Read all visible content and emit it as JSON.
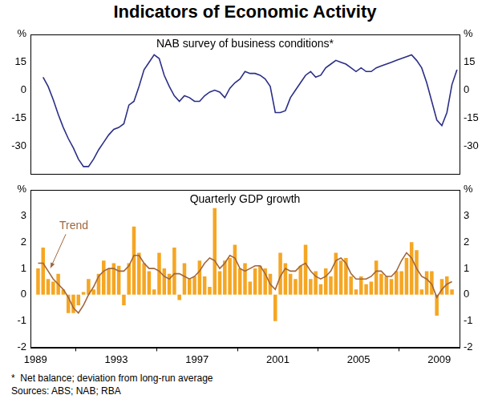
{
  "title": "Indicators of Economic Activity",
  "notes": [
    "*  Net balance; deviation from long-run average",
    "Sources: ABS; NAB; RBA"
  ],
  "chart_data": [
    {
      "type": "line",
      "title": "NAB survey of business conditions*",
      "x": [
        1989.375,
        1989.625,
        1989.875,
        1990.125,
        1990.375,
        1990.625,
        1990.875,
        1991.125,
        1991.375,
        1991.625,
        1991.875,
        1992.125,
        1992.375,
        1992.625,
        1992.875,
        1993.125,
        1993.375,
        1993.625,
        1993.875,
        1994.125,
        1994.375,
        1994.625,
        1994.875,
        1995.125,
        1995.375,
        1995.625,
        1995.875,
        1996.125,
        1996.375,
        1996.625,
        1996.875,
        1997.125,
        1997.375,
        1997.625,
        1997.875,
        1998.125,
        1998.375,
        1998.625,
        1998.875,
        1999.125,
        1999.375,
        1999.625,
        1999.875,
        2000.125,
        2000.375,
        2000.625,
        2000.875,
        2001.125,
        2001.375,
        2001.625,
        2001.875,
        2002.125,
        2002.375,
        2002.625,
        2002.875,
        2003.125,
        2003.375,
        2003.625,
        2003.875,
        2004.125,
        2004.375,
        2004.625,
        2004.875,
        2005.125,
        2005.375,
        2005.625,
        2005.875,
        2006.125,
        2006.375,
        2006.625,
        2006.875,
        2007.125,
        2007.375,
        2007.625,
        2007.875,
        2008.125,
        2008.375,
        2008.625,
        2008.875,
        2009.125,
        2009.375,
        2009.625,
        2009.875
      ],
      "values": [
        7,
        2,
        -5,
        -13,
        -20,
        -26,
        -31,
        -37,
        -41,
        -41,
        -37,
        -32,
        -28,
        -24,
        -21,
        -20,
        -18,
        -8,
        -6,
        2,
        11,
        15,
        19,
        17,
        8,
        2,
        -3,
        -6,
        -3,
        -4,
        -6,
        -6,
        -3,
        -1,
        0,
        -1,
        -4,
        1,
        4,
        6,
        10,
        9,
        9,
        8,
        6,
        2,
        -12,
        -12,
        -11,
        -4,
        0,
        4,
        8,
        10,
        7,
        8,
        12,
        14,
        16,
        15,
        14,
        12,
        10,
        12,
        10,
        10,
        12,
        13,
        14,
        15,
        16,
        17,
        18,
        19,
        16,
        12,
        4,
        -6,
        -16,
        -19,
        -12,
        3,
        11
      ],
      "color": "#2b2f86",
      "xlim": [
        1988.75,
        2010
      ],
      "ylim": [
        -45,
        30
      ],
      "yticks": [
        -30,
        -15,
        0,
        15,
        {
          "value": 30,
          "label": "%"
        }
      ],
      "grid": false,
      "tick_labels": "y"
    },
    {
      "type": "bar",
      "title": "Quarterly GDP growth",
      "x": [
        1989.125,
        1989.375,
        1989.625,
        1989.875,
        1990.125,
        1990.375,
        1990.625,
        1990.875,
        1991.125,
        1991.375,
        1991.625,
        1991.875,
        1992.125,
        1992.375,
        1992.625,
        1992.875,
        1993.125,
        1993.375,
        1993.625,
        1993.875,
        1994.125,
        1994.375,
        1994.625,
        1994.875,
        1995.125,
        1995.375,
        1995.625,
        1995.875,
        1996.125,
        1996.375,
        1996.625,
        1996.875,
        1997.125,
        1997.375,
        1997.625,
        1997.875,
        1998.125,
        1998.375,
        1998.625,
        1998.875,
        1999.125,
        1999.375,
        1999.625,
        1999.875,
        2000.125,
        2000.375,
        2000.625,
        2000.875,
        2001.125,
        2001.375,
        2001.625,
        2001.875,
        2002.125,
        2002.375,
        2002.625,
        2002.875,
        2003.125,
        2003.375,
        2003.625,
        2003.875,
        2004.125,
        2004.375,
        2004.625,
        2004.875,
        2005.125,
        2005.375,
        2005.625,
        2005.875,
        2006.125,
        2006.375,
        2006.625,
        2006.875,
        2007.125,
        2007.375,
        2007.625,
        2007.875,
        2008.125,
        2008.375,
        2008.625,
        2008.875,
        2009.125,
        2009.375,
        2009.625
      ],
      "series": [
        {
          "type": "bar",
          "color": "#f5a623",
          "values": [
            1.0,
            1.8,
            0.6,
            0.5,
            0.8,
            0.2,
            -0.7,
            -0.7,
            -0.4,
            0.1,
            0.6,
            0.2,
            0.8,
            1.3,
            1.0,
            1.2,
            1.1,
            -0.4,
            1.2,
            2.6,
            1.6,
            1.2,
            0.9,
            0.2,
            1.6,
            1.0,
            0.8,
            1.8,
            -0.2,
            1.2,
            0.6,
            0.7,
            1.3,
            0.7,
            0.3,
            3.3,
            0.9,
            1.3,
            1.4,
            1.9,
            1.0,
            1.2,
            0.5,
            1.0,
            1.1,
            1.0,
            0.8,
            -1.0,
            1.6,
            1.2,
            0.8,
            0.6,
            1.1,
            1.9,
            0.6,
            0.9,
            0.4,
            1.0,
            0.7,
            1.6,
            1.3,
            1.4,
            0.7,
            0.2,
            0.7,
            0.4,
            0.5,
            1.3,
            0.8,
            0.7,
            0.6,
            0.9,
            0.9,
            1.4,
            2.0,
            1.7,
            0.2,
            0.9,
            0.9,
            -0.8,
            0.6,
            0.7,
            0.2
          ]
        },
        {
          "name": "Trend",
          "type": "line",
          "color": "#a0663a",
          "values": [
            1.2,
            1.2,
            0.9,
            0.6,
            0.4,
            0.2,
            -0.1,
            -0.5,
            -0.7,
            -0.4,
            0.0,
            0.3,
            0.7,
            0.9,
            1.0,
            1.0,
            0.9,
            0.9,
            1.1,
            1.5,
            1.5,
            1.2,
            1.0,
            1.0,
            0.9,
            0.7,
            0.6,
            0.8,
            0.8,
            0.7,
            0.6,
            0.7,
            0.9,
            1.2,
            1.4,
            1.3,
            1.0,
            1.2,
            1.5,
            1.4,
            1.0,
            0.9,
            1.0,
            1.1,
            1.1,
            0.8,
            0.4,
            0.2,
            0.7,
            1.0,
            0.9,
            0.9,
            1.1,
            1.2,
            0.9,
            0.7,
            0.6,
            0.7,
            0.9,
            1.3,
            1.4,
            1.2,
            0.8,
            0.6,
            0.6,
            0.6,
            0.7,
            0.9,
            0.9,
            0.7,
            0.7,
            0.9,
            1.3,
            1.6,
            1.4,
            1.0,
            0.7,
            0.6,
            0.4,
            -0.1,
            0.2,
            0.4,
            0.5
          ]
        }
      ],
      "xlim": [
        1988.75,
        2010
      ],
      "xticks": [
        1989,
        1993,
        1997,
        2001,
        2005,
        2009
      ],
      "ylim": [
        -2,
        4
      ],
      "yticks": [
        -2,
        -1,
        0,
        1,
        2,
        3,
        {
          "value": 4,
          "label": "%"
        }
      ],
      "grid": false
    }
  ]
}
